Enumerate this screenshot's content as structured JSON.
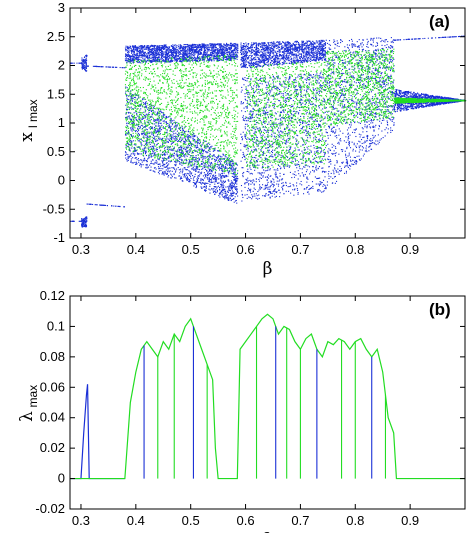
{
  "chart_data": [
    {
      "type": "scatter",
      "panel_label": "(a)",
      "xlabel": "β",
      "ylabel_main": "x",
      "ylabel_sub": "l max",
      "xlim": [
        0.28,
        1.0
      ],
      "ylim": [
        -1,
        3
      ],
      "xticks": [
        "0.3",
        "0.4",
        "0.5",
        "0.6",
        "0.7",
        "0.8",
        "0.9"
      ],
      "xtick_values": [
        0.3,
        0.4,
        0.5,
        0.6,
        0.7,
        0.8,
        0.9
      ],
      "yticks": [
        "-1",
        "-0.5",
        "0",
        "0.5",
        "1",
        "1.5",
        "2",
        "2.5",
        "3"
      ],
      "ytick_values": [
        -1,
        -0.5,
        0,
        0.5,
        1,
        1.5,
        2,
        2.5,
        3
      ],
      "colors": {
        "series_a": "#1a2fd6",
        "series_b": "#22dd22"
      },
      "series": [
        {
          "branches": [
            {
              "x": [
                0.28,
                0.3
              ],
              "lo": [
                2.05,
                2.05
              ],
              "hi": [
                2.05,
                2.05
              ]
            },
            {
              "x": [
                0.28,
                0.3
              ],
              "lo": [
                -0.7,
                -0.7
              ],
              "hi": [
                -0.7,
                -0.7
              ]
            },
            {
              "x": [
                0.3,
                0.31
              ],
              "lo": [
                1.95,
                1.9
              ],
              "hi": [
                2.15,
                2.2
              ]
            },
            {
              "x": [
                0.3,
                0.31
              ],
              "lo": [
                -0.8,
                -0.8
              ],
              "hi": [
                -0.65,
                -0.62
              ]
            },
            {
              "x": [
                0.31,
                0.38
              ],
              "lo": [
                2.0,
                1.97
              ],
              "hi": [
                2.0,
                1.97
              ]
            },
            {
              "x": [
                0.31,
                0.38
              ],
              "lo": [
                -0.4,
                -0.45
              ],
              "hi": [
                -0.4,
                -0.45
              ]
            },
            {
              "x": [
                0.38,
                0.585
              ],
              "lo": [
                2.05,
                2.1
              ],
              "hi": [
                2.35,
                2.4
              ]
            },
            {
              "x": [
                0.38,
                0.585
              ],
              "lo": [
                0.35,
                -0.4
              ],
              "hi": [
                1.65,
                0.3
              ]
            },
            {
              "x": [
                0.59,
                0.745
              ],
              "lo": [
                1.95,
                2.1
              ],
              "hi": [
                2.4,
                2.45
              ]
            },
            {
              "x": [
                0.59,
                0.745
              ],
              "lo": [
                -0.35,
                -0.2
              ],
              "hi": [
                1.8,
                1.9
              ]
            },
            {
              "x": [
                0.745,
                0.87
              ],
              "lo": [
                -0.2,
                0.9
              ],
              "hi": [
                2.45,
                2.5
              ]
            },
            {
              "x": [
                0.87,
                1.0
              ],
              "lo": [
                2.45,
                2.52
              ],
              "hi": [
                2.45,
                2.52
              ]
            },
            {
              "x": [
                0.87,
                1.0
              ],
              "lo": [
                1.2,
                1.4
              ],
              "hi": [
                1.6,
                1.4
              ]
            }
          ]
        },
        {
          "branches": [
            {
              "x": [
                0.38,
                0.585
              ],
              "lo": [
                0.5,
                0.1
              ],
              "hi": [
                2.1,
                2.2
              ]
            },
            {
              "x": [
                0.6,
                0.745
              ],
              "lo": [
                0.2,
                0.3
              ],
              "hi": [
                2.0,
                2.1
              ]
            },
            {
              "x": [
                0.745,
                0.87
              ],
              "lo": [
                0.95,
                1.1
              ],
              "hi": [
                2.25,
                2.3
              ]
            },
            {
              "x": [
                0.87,
                1.0
              ],
              "lo": [
                1.35,
                1.4
              ],
              "hi": [
                1.45,
                1.4
              ]
            }
          ]
        }
      ]
    },
    {
      "type": "line",
      "panel_label": "(b)",
      "xlabel": "β",
      "ylabel_main": "λ",
      "ylabel_sub": "max",
      "xlim": [
        0.28,
        1.0
      ],
      "ylim": [
        -0.02,
        0.12
      ],
      "xticks": [
        "0.3",
        "0.4",
        "0.5",
        "0.6",
        "0.7",
        "0.8",
        "0.9"
      ],
      "xtick_values": [
        0.3,
        0.4,
        0.5,
        0.6,
        0.7,
        0.8,
        0.9
      ],
      "yticks": [
        "-0.02",
        "0",
        "0.02",
        "0.04",
        "0.06",
        "0.08",
        "0.1",
        "0.12"
      ],
      "ytick_values": [
        -0.02,
        0,
        0.02,
        0.04,
        0.06,
        0.08,
        0.1,
        0.12
      ],
      "colors": {
        "series_a": "#1a2fd6",
        "series_b": "#22dd22"
      },
      "series": [
        {
          "x": [
            0.28,
            0.3,
            0.305,
            0.31,
            0.312,
            0.315,
            0.32,
            0.38
          ],
          "y": [
            0.0,
            0.0,
            0.03,
            0.055,
            0.062,
            0.0,
            0.0,
            0.0
          ]
        },
        {
          "x": [
            0.28,
            0.38,
            0.39,
            0.4,
            0.41,
            0.42,
            0.43,
            0.44,
            0.45,
            0.46,
            0.47,
            0.48,
            0.49,
            0.5,
            0.51,
            0.52,
            0.53,
            0.54,
            0.545,
            0.55,
            0.585,
            0.59,
            0.6,
            0.61,
            0.62,
            0.63,
            0.64,
            0.65,
            0.66,
            0.67,
            0.68,
            0.69,
            0.7,
            0.71,
            0.72,
            0.73,
            0.74,
            0.75,
            0.76,
            0.77,
            0.78,
            0.79,
            0.8,
            0.81,
            0.82,
            0.83,
            0.84,
            0.85,
            0.86,
            0.87,
            0.875,
            0.88,
            0.9,
            1.0
          ],
          "y": [
            0.0,
            0.0,
            0.05,
            0.07,
            0.085,
            0.09,
            0.085,
            0.08,
            0.09,
            0.085,
            0.095,
            0.09,
            0.1,
            0.105,
            0.095,
            0.085,
            0.075,
            0.065,
            0.02,
            0.0,
            0.0,
            0.085,
            0.09,
            0.095,
            0.1,
            0.105,
            0.108,
            0.105,
            0.095,
            0.1,
            0.098,
            0.09,
            0.085,
            0.092,
            0.095,
            0.085,
            0.08,
            0.09,
            0.088,
            0.092,
            0.09,
            0.085,
            0.09,
            0.092,
            0.085,
            0.08,
            0.085,
            0.07,
            0.04,
            0.03,
            0.0,
            0.0,
            0.0,
            0.0
          ]
        }
      ],
      "dips": [
        0.415,
        0.44,
        0.47,
        0.505,
        0.53,
        0.62,
        0.655,
        0.675,
        0.7,
        0.73,
        0.775,
        0.8,
        0.83,
        0.855
      ]
    }
  ]
}
